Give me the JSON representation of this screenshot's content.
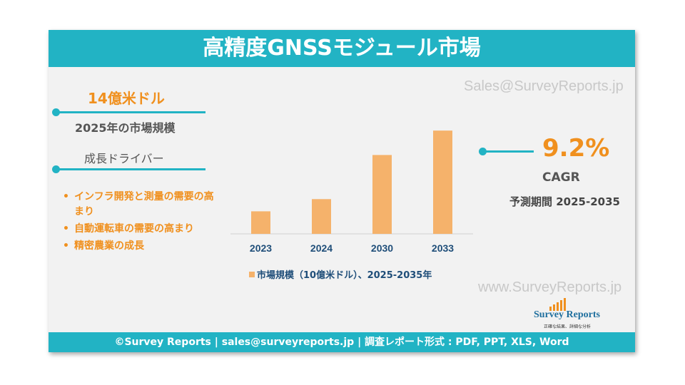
{
  "title": "高精度GNSSモジュール市場",
  "watermarks": {
    "top": "Sales@SurveyReports.jp",
    "bottom": "www.SurveyReports.jp"
  },
  "left_panel": {
    "market_value": "14億米ドル",
    "market_value_label": "2025年の市場規模",
    "drivers_heading": "成長ドライバー",
    "drivers": [
      "インフラ開発と測量の需要の高まり",
      "自動運転車の需要の高まり",
      "精密農業の成長"
    ]
  },
  "right_panel": {
    "cagr_value": "9.2%",
    "cagr_label": "CAGR",
    "forecast_period": "予測期間 2025-2035"
  },
  "colors": {
    "accent": "#22b3c4",
    "bar": "#f5b26b",
    "orange_text": "#f0901e"
  },
  "chart_data": {
    "type": "bar",
    "categories": [
      "2023",
      "2024",
      "2030",
      "2033"
    ],
    "values": [
      1.2,
      1.85,
      4.2,
      5.5
    ],
    "legend": "市場規模（10億米ドル）、2025-2035年",
    "ylim": [
      0,
      6
    ],
    "grid": false,
    "legend_placement": "bottom"
  },
  "logo": {
    "name": "Survey Reports",
    "tagline": "正確な結果、詳細な分析"
  },
  "footer": "©Survey Reports | sales@surveyreports.jp |  調査レポート形式 : PDF, PPT, XLS, Word"
}
